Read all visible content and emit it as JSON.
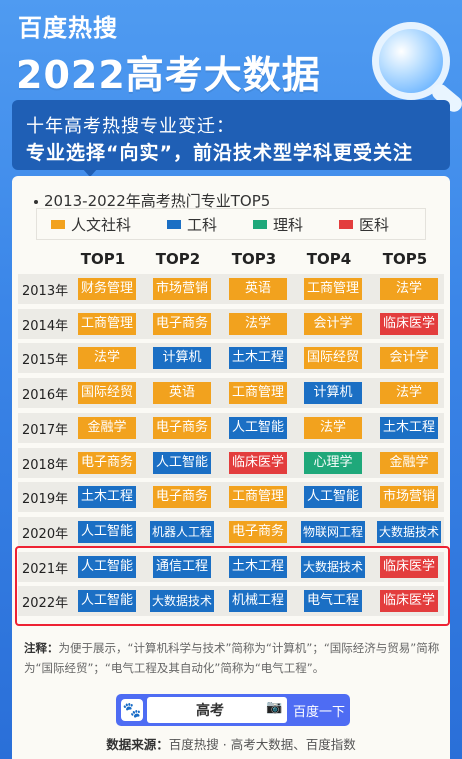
{
  "header": {
    "brand": "百度热搜",
    "headline": "2022高考大数据",
    "subtitle_line1": "十年高考热搜专业变迁：",
    "subtitle_line2": "专业选择“向实”，前沿技术型学科更受关注"
  },
  "chart": {
    "title": "2013-2022年高考热门专业TOP5",
    "legend": [
      {
        "label": "人文社科",
        "color": "#f2a21e"
      },
      {
        "label": "工科",
        "color": "#1b6fc4"
      },
      {
        "label": "理科",
        "color": "#1fa87a"
      },
      {
        "label": "医科",
        "color": "#e33d3d"
      }
    ],
    "columns": [
      "TOP1",
      "TOP2",
      "TOP3",
      "TOP4",
      "TOP5"
    ],
    "rows": [
      {
        "year": "2013年",
        "items": [
          [
            "财务管理",
            "h"
          ],
          [
            "市场营销",
            "h"
          ],
          [
            "英语",
            "h"
          ],
          [
            "工商管理",
            "h"
          ],
          [
            "法学",
            "h"
          ]
        ]
      },
      {
        "year": "2014年",
        "items": [
          [
            "工商管理",
            "h"
          ],
          [
            "电子商务",
            "h"
          ],
          [
            "法学",
            "h"
          ],
          [
            "会计学",
            "h"
          ],
          [
            "临床医学",
            "m"
          ]
        ]
      },
      {
        "year": "2015年",
        "items": [
          [
            "法学",
            "h"
          ],
          [
            "计算机",
            "e"
          ],
          [
            "土木工程",
            "e"
          ],
          [
            "国际经贸",
            "h"
          ],
          [
            "会计学",
            "h"
          ]
        ]
      },
      {
        "year": "2016年",
        "items": [
          [
            "国际经贸",
            "h"
          ],
          [
            "英语",
            "h"
          ],
          [
            "工商管理",
            "h"
          ],
          [
            "计算机",
            "e"
          ],
          [
            "法学",
            "h"
          ]
        ]
      },
      {
        "year": "2017年",
        "items": [
          [
            "金融学",
            "h"
          ],
          [
            "电子商务",
            "h"
          ],
          [
            "人工智能",
            "e"
          ],
          [
            "法学",
            "h"
          ],
          [
            "土木工程",
            "e"
          ]
        ]
      },
      {
        "year": "2018年",
        "items": [
          [
            "电子商务",
            "h"
          ],
          [
            "人工智能",
            "e"
          ],
          [
            "临床医学",
            "m"
          ],
          [
            "心理学",
            "s"
          ],
          [
            "金融学",
            "h"
          ]
        ]
      },
      {
        "year": "2019年",
        "items": [
          [
            "土木工程",
            "e"
          ],
          [
            "电子商务",
            "h"
          ],
          [
            "工商管理",
            "h"
          ],
          [
            "人工智能",
            "e"
          ],
          [
            "市场营销",
            "h"
          ]
        ]
      },
      {
        "year": "2020年",
        "items": [
          [
            "人工智能",
            "e"
          ],
          [
            "机器人工程",
            "e"
          ],
          [
            "电子商务",
            "h"
          ],
          [
            "物联网工程",
            "e"
          ],
          [
            "大数据技术",
            "e"
          ]
        ]
      },
      {
        "year": "2021年",
        "items": [
          [
            "人工智能",
            "e"
          ],
          [
            "通信工程",
            "e"
          ],
          [
            "土木工程",
            "e"
          ],
          [
            "大数据技术",
            "e"
          ],
          [
            "临床医学",
            "m"
          ]
        ]
      },
      {
        "year": "2022年",
        "items": [
          [
            "人工智能",
            "e"
          ],
          [
            "大数据技术",
            "e"
          ],
          [
            "机械工程",
            "e"
          ],
          [
            "电气工程",
            "e"
          ],
          [
            "临床医学",
            "m"
          ]
        ]
      }
    ]
  },
  "notes": {
    "label": "注释：",
    "text": "为便于展示，“计算机科学与技术”简称为“计算机”；“国际经济与贸易”简称为“国际经贸”；“电气工程及其自动化”简称为“电气工程”。"
  },
  "search": {
    "query": "高考",
    "button": "百度一下",
    "logo_icon": "baidu-paw-icon",
    "camera_icon": "camera-icon"
  },
  "source": {
    "label": "数据来源：",
    "text": "百度热搜 · 高考大数据、百度指数"
  }
}
